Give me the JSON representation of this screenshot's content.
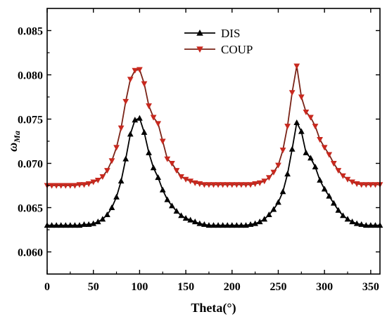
{
  "chart_data": {
    "type": "line",
    "xlabel": "Theta(°)",
    "ylabel": "ω",
    "ylabel_sub": "Ma",
    "xlim": [
      0,
      360
    ],
    "ylim": [
      0.0575,
      0.0875
    ],
    "xticks": [
      0,
      50,
      100,
      150,
      200,
      250,
      300,
      350
    ],
    "xtick_labels": [
      "0",
      "50",
      "100",
      "150",
      "200",
      "250",
      "300",
      "350"
    ],
    "yticks": [
      0.06,
      0.065,
      0.07,
      0.075,
      0.08,
      0.085
    ],
    "ytick_labels": [
      "0.060",
      "0.065",
      "0.070",
      "0.075",
      "0.080",
      "0.085"
    ],
    "grid": false,
    "legend_position": "top-center",
    "x": [
      0,
      5,
      10,
      15,
      20,
      25,
      30,
      35,
      40,
      45,
      50,
      55,
      60,
      65,
      70,
      75,
      80,
      85,
      90,
      95,
      100,
      105,
      110,
      115,
      120,
      125,
      130,
      135,
      140,
      145,
      150,
      155,
      160,
      165,
      170,
      175,
      180,
      185,
      190,
      195,
      200,
      205,
      210,
      215,
      220,
      225,
      230,
      235,
      240,
      245,
      250,
      255,
      260,
      265,
      270,
      275,
      280,
      285,
      290,
      295,
      300,
      305,
      310,
      315,
      320,
      325,
      330,
      335,
      340,
      345,
      350,
      355,
      360
    ],
    "series": [
      {
        "name": "DIS",
        "color": "#000000",
        "marker": "triangle-up",
        "values": [
          0.063,
          0.063,
          0.063,
          0.063,
          0.063,
          0.063,
          0.063,
          0.063,
          0.0631,
          0.0631,
          0.0632,
          0.0634,
          0.0637,
          0.0642,
          0.065,
          0.0662,
          0.068,
          0.0705,
          0.0733,
          0.0749,
          0.0751,
          0.0735,
          0.0712,
          0.0695,
          0.0684,
          0.067,
          0.0659,
          0.0652,
          0.0646,
          0.0641,
          0.0638,
          0.0636,
          0.0634,
          0.0632,
          0.0631,
          0.063,
          0.063,
          0.063,
          0.063,
          0.063,
          0.063,
          0.063,
          0.063,
          0.063,
          0.0631,
          0.0632,
          0.0634,
          0.0637,
          0.0642,
          0.0648,
          0.0656,
          0.0668,
          0.0688,
          0.0716,
          0.0746,
          0.0736,
          0.0712,
          0.0706,
          0.0696,
          0.0681,
          0.0671,
          0.0663,
          0.0655,
          0.0647,
          0.0641,
          0.0637,
          0.0634,
          0.0632,
          0.0631,
          0.063,
          0.063,
          0.063,
          0.063
        ]
      },
      {
        "name": "COUP",
        "color": "#c8281e",
        "line_color": "#7a2418",
        "marker": "triangle-down",
        "values": [
          0.0675,
          0.0675,
          0.0675,
          0.0675,
          0.0675,
          0.0675,
          0.0675,
          0.0676,
          0.0676,
          0.0677,
          0.0679,
          0.0681,
          0.0685,
          0.0692,
          0.0703,
          0.0718,
          0.074,
          0.077,
          0.0795,
          0.0805,
          0.0806,
          0.079,
          0.0765,
          0.0752,
          0.0745,
          0.0725,
          0.0705,
          0.07,
          0.0692,
          0.0685,
          0.0682,
          0.068,
          0.0678,
          0.0677,
          0.0676,
          0.0676,
          0.0676,
          0.0676,
          0.0676,
          0.0676,
          0.0676,
          0.0676,
          0.0676,
          0.0676,
          0.0676,
          0.0677,
          0.0678,
          0.068,
          0.0684,
          0.069,
          0.0698,
          0.0715,
          0.0742,
          0.078,
          0.081,
          0.0775,
          0.0758,
          0.0752,
          0.0742,
          0.0727,
          0.0718,
          0.071,
          0.07,
          0.0692,
          0.0686,
          0.0682,
          0.0679,
          0.0677,
          0.0676,
          0.0676,
          0.0676,
          0.0676,
          0.0676
        ]
      }
    ]
  }
}
